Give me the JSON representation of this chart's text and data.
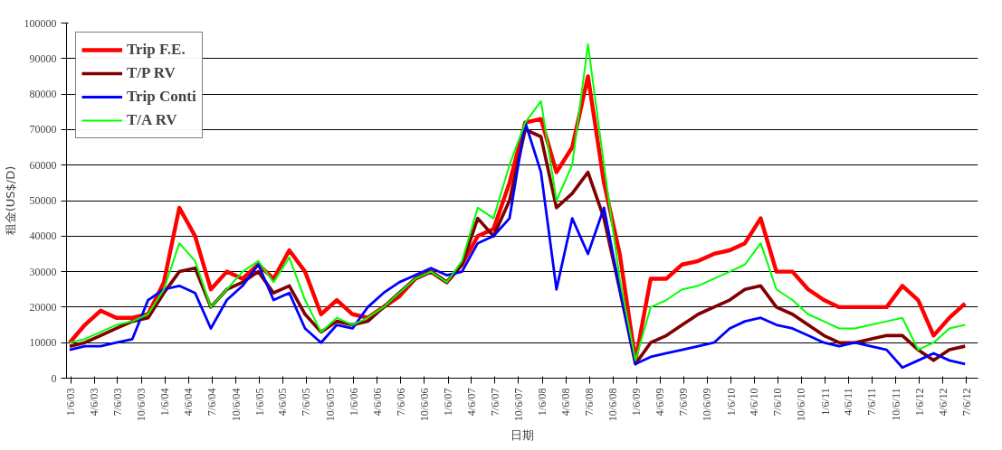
{
  "chart_data": {
    "type": "line",
    "xlabel": "日期",
    "ylabel": "租金(US$/D)",
    "x": [
      "2003-01",
      "2003-03",
      "2003-05",
      "2003-07",
      "2003-09",
      "2003-11",
      "2004-01",
      "2004-03",
      "2004-05",
      "2004-07",
      "2004-09",
      "2004-11",
      "2005-01",
      "2005-03",
      "2005-05",
      "2005-07",
      "2005-09",
      "2005-11",
      "2006-01",
      "2006-03",
      "2006-05",
      "2006-07",
      "2006-09",
      "2006-11",
      "2007-01",
      "2007-03",
      "2007-05",
      "2007-07",
      "2007-09",
      "2007-11",
      "2008-01",
      "2008-03",
      "2008-05",
      "2008-07",
      "2008-09",
      "2008-11",
      "2009-01",
      "2009-03",
      "2009-05",
      "2009-07",
      "2009-09",
      "2009-11",
      "2010-01",
      "2010-03",
      "2010-05",
      "2010-07",
      "2010-09",
      "2010-11",
      "2011-01",
      "2011-03",
      "2011-05",
      "2011-07",
      "2011-09",
      "2011-11",
      "2012-01",
      "2012-03",
      "2012-05",
      "2012-07"
    ],
    "series": [
      {
        "name": "Trip F.E.",
        "color": "#ff0000",
        "values": [
          10000,
          15000,
          19000,
          17000,
          17000,
          18000,
          27000,
          48000,
          40000,
          25000,
          30000,
          28000,
          32000,
          28000,
          36000,
          30000,
          18000,
          22000,
          18000,
          17000,
          20000,
          23000,
          28000,
          30000,
          27000,
          32000,
          40000,
          42000,
          55000,
          72000,
          73000,
          58000,
          65000,
          85000,
          55000,
          35000,
          5000,
          28000,
          28000,
          32000,
          33000,
          35000,
          36000,
          38000,
          45000,
          30000,
          30000,
          25000,
          22000,
          20000,
          20000,
          20000,
          20000,
          26000,
          22000,
          12000,
          17000,
          21000
        ]
      },
      {
        "name": "T/P RV",
        "color": "#800000",
        "values": [
          9000,
          10000,
          12000,
          14000,
          16000,
          17000,
          24000,
          30000,
          31000,
          20000,
          25000,
          27000,
          30000,
          24000,
          26000,
          18000,
          13000,
          16000,
          15000,
          16000,
          20000,
          24000,
          28000,
          30000,
          27000,
          32000,
          45000,
          40000,
          50000,
          70000,
          68000,
          48000,
          52000,
          58000,
          45000,
          25000,
          4000,
          10000,
          12000,
          15000,
          18000,
          20000,
          22000,
          25000,
          26000,
          20000,
          18000,
          15000,
          12000,
          10000,
          10000,
          11000,
          12000,
          12000,
          8000,
          5000,
          8000,
          9000
        ]
      },
      {
        "name": "Trip Conti",
        "color": "#0000ff",
        "values": [
          8000,
          9000,
          9000,
          10000,
          11000,
          22000,
          25000,
          26000,
          24000,
          14000,
          22000,
          26000,
          32000,
          22000,
          24000,
          14000,
          10000,
          15000,
          14000,
          20000,
          24000,
          27000,
          29000,
          31000,
          29000,
          30000,
          38000,
          40000,
          45000,
          72000,
          58000,
          25000,
          45000,
          35000,
          48000,
          25000,
          4000,
          6000,
          7000,
          8000,
          9000,
          10000,
          14000,
          16000,
          17000,
          15000,
          14000,
          12000,
          10000,
          9000,
          10000,
          9000,
          8000,
          3000,
          5000,
          7000,
          5000,
          4000
        ]
      },
      {
        "name": "T/A RV",
        "color": "#00ff00",
        "values": [
          10000,
          11000,
          13000,
          15000,
          16000,
          18000,
          25000,
          38000,
          33000,
          20000,
          25000,
          30000,
          33000,
          27000,
          34000,
          22000,
          13000,
          17000,
          15000,
          17000,
          20000,
          24000,
          28000,
          30000,
          27000,
          33000,
          48000,
          45000,
          60000,
          72000,
          78000,
          50000,
          60000,
          94000,
          60000,
          28000,
          5000,
          20000,
          22000,
          25000,
          26000,
          28000,
          30000,
          32000,
          38000,
          25000,
          22000,
          18000,
          16000,
          14000,
          14000,
          15000,
          16000,
          17000,
          8000,
          10000,
          14000,
          15000
        ]
      }
    ],
    "xlim": [
      "2002-12-20",
      "2012-08-20"
    ],
    "xticks": [
      {
        "value": "2003-01-06",
        "label": "1/6/03"
      },
      {
        "value": "2003-04-06",
        "label": "4/6/03"
      },
      {
        "value": "2003-07-06",
        "label": "7/6/03"
      },
      {
        "value": "2003-10-06",
        "label": "10/6/03"
      },
      {
        "value": "2004-01-06",
        "label": "1/6/04"
      },
      {
        "value": "2004-04-06",
        "label": "4/6/04"
      },
      {
        "value": "2004-07-06",
        "label": "7/6/04"
      },
      {
        "value": "2004-10-06",
        "label": "10/6/04"
      },
      {
        "value": "2005-01-06",
        "label": "1/6/05"
      },
      {
        "value": "2005-04-06",
        "label": "4/6/05"
      },
      {
        "value": "2005-07-06",
        "label": "7/6/05"
      },
      {
        "value": "2005-10-06",
        "label": "10/6/05"
      },
      {
        "value": "2006-01-06",
        "label": "1/6/06"
      },
      {
        "value": "2006-04-06",
        "label": "4/6/06"
      },
      {
        "value": "2006-07-06",
        "label": "7/6/06"
      },
      {
        "value": "2006-10-06",
        "label": "10/6/06"
      },
      {
        "value": "2007-01-06",
        "label": "1/6/07"
      },
      {
        "value": "2007-04-06",
        "label": "4/6/07"
      },
      {
        "value": "2007-07-06",
        "label": "7/6/07"
      },
      {
        "value": "2007-10-06",
        "label": "10/6/07"
      },
      {
        "value": "2008-01-06",
        "label": "1/6/08"
      },
      {
        "value": "2008-04-06",
        "label": "4/6/08"
      },
      {
        "value": "2008-07-06",
        "label": "7/6/08"
      },
      {
        "value": "2008-10-06",
        "label": "10/6/08"
      },
      {
        "value": "2009-01-06",
        "label": "1/6/09"
      },
      {
        "value": "2009-04-06",
        "label": "4/6/09"
      },
      {
        "value": "2009-07-06",
        "label": "7/6/09"
      },
      {
        "value": "2009-10-06",
        "label": "10/6/09"
      },
      {
        "value": "2010-01-06",
        "label": "1/6/10"
      },
      {
        "value": "2010-04-06",
        "label": "4/6/10"
      },
      {
        "value": "2010-07-06",
        "label": "7/6/10"
      },
      {
        "value": "2010-10-06",
        "label": "10/6/10"
      },
      {
        "value": "2011-01-06",
        "label": "1/6/11"
      },
      {
        "value": "2011-04-06",
        "label": "4/6/11"
      },
      {
        "value": "2011-07-06",
        "label": "7/6/11"
      },
      {
        "value": "2011-10-06",
        "label": "10/6/11"
      },
      {
        "value": "2012-01-06",
        "label": "1/6/12"
      },
      {
        "value": "2012-04-06",
        "label": "4/6/12"
      },
      {
        "value": "2012-07-06",
        "label": "7/6/12"
      }
    ],
    "ylim": [
      0,
      100000
    ],
    "yticks": [
      0,
      10000,
      20000,
      30000,
      40000,
      50000,
      60000,
      70000,
      80000,
      90000,
      100000
    ],
    "grid": "y",
    "legend": "top left",
    "marker": "none",
    "line_style": "solid"
  }
}
